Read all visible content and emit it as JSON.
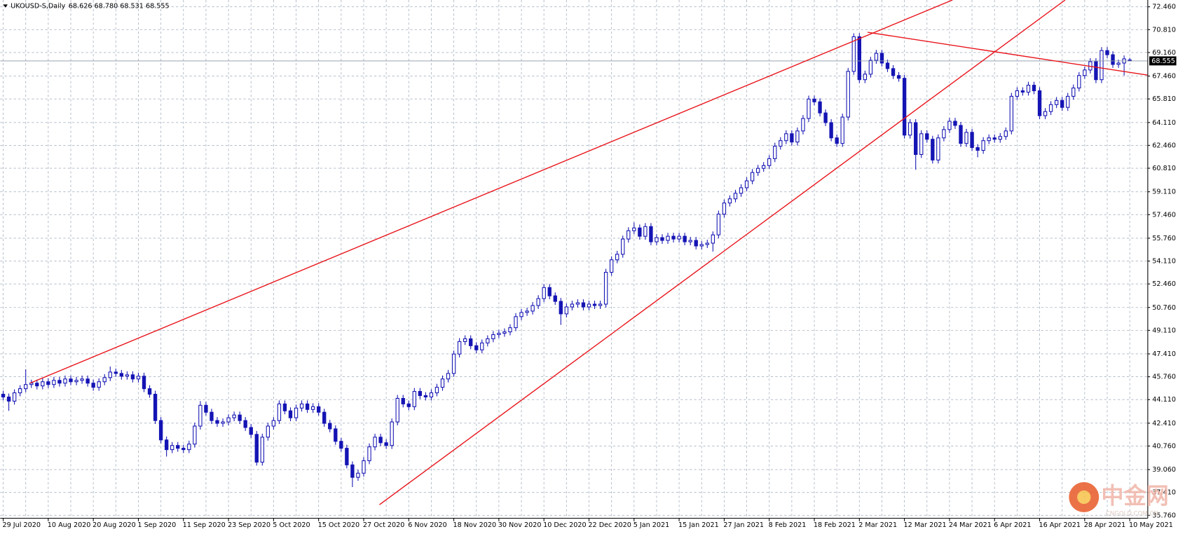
{
  "chart_data": {
    "type": "candlestick",
    "title": "UKOUSD-S,Daily",
    "header_prices": "68.626 68.780 68.531 68.555",
    "watermark": "中金网",
    "watermark_sub": "CNGOLD.COM.CN",
    "color": "#1414b4",
    "grid": true,
    "ylim": [
      35.55,
      72.95
    ],
    "yticks": [
      {
        "value": 35.76,
        "label": "35.760"
      },
      {
        "value": 37.41,
        "label": "37.410"
      },
      {
        "value": 39.06,
        "label": "39.060"
      },
      {
        "value": 40.76,
        "label": "40.760"
      },
      {
        "value": 42.41,
        "label": "42.410"
      },
      {
        "value": 44.11,
        "label": "44.110"
      },
      {
        "value": 45.76,
        "label": "45.760"
      },
      {
        "value": 47.41,
        "label": "47.410"
      },
      {
        "value": 49.11,
        "label": "49.110"
      },
      {
        "value": 50.76,
        "label": "50.760"
      },
      {
        "value": 52.46,
        "label": "52.460"
      },
      {
        "value": 54.11,
        "label": "54.110"
      },
      {
        "value": 55.76,
        "label": "55.760"
      },
      {
        "value": 57.46,
        "label": "57.460"
      },
      {
        "value": 59.11,
        "label": "59.110"
      },
      {
        "value": 60.81,
        "label": "60.810"
      },
      {
        "value": 62.46,
        "label": "62.460"
      },
      {
        "value": 64.11,
        "label": "64.110"
      },
      {
        "value": 65.81,
        "label": "65.810"
      },
      {
        "value": 67.46,
        "label": "67.460"
      },
      {
        "value": 69.16,
        "label": "69.160"
      },
      {
        "value": 70.81,
        "label": "70.810"
      },
      {
        "value": 72.46,
        "label": "72.460"
      }
    ],
    "categories": [
      "29 Jul 2020",
      null,
      null,
      null,
      null,
      null,
      null,
      null,
      "10 Aug 2020",
      null,
      null,
      null,
      null,
      null,
      null,
      null,
      "20 Aug 2020",
      null,
      null,
      null,
      null,
      null,
      null,
      null,
      "1 Sep 2020",
      null,
      null,
      null,
      null,
      null,
      null,
      null,
      "11 Sep 2020",
      null,
      null,
      null,
      null,
      null,
      null,
      null,
      "23 Sep 2020",
      null,
      null,
      null,
      null,
      null,
      null,
      null,
      "5 Oct 2020",
      null,
      null,
      null,
      null,
      null,
      null,
      null,
      "15 Oct 2020",
      null,
      null,
      null,
      null,
      null,
      null,
      null,
      "27 Oct 2020",
      null,
      null,
      null,
      null,
      null,
      null,
      null,
      "6 Nov 2020",
      null,
      null,
      null,
      null,
      null,
      null,
      null,
      "18 Nov 2020",
      null,
      null,
      null,
      null,
      null,
      null,
      null,
      "30 Nov 2020",
      null,
      null,
      null,
      null,
      null,
      null,
      null,
      "10 Dec 2020",
      null,
      null,
      null,
      null,
      null,
      null,
      null,
      "22 Dec 2020",
      null,
      null,
      null,
      null,
      null,
      null,
      null,
      "5 Jan 2021",
      null,
      null,
      null,
      null,
      null,
      null,
      null,
      "15 Jan 2021",
      null,
      null,
      null,
      null,
      null,
      null,
      null,
      "27 Jan 2021",
      null,
      null,
      null,
      null,
      null,
      null,
      null,
      "8 Feb 2021",
      null,
      null,
      null,
      null,
      null,
      null,
      null,
      "18 Feb 2021",
      null,
      null,
      null,
      null,
      null,
      null,
      null,
      "2 Mar 2021",
      null,
      null,
      null,
      null,
      null,
      null,
      null,
      "12 Mar 2021",
      null,
      null,
      null,
      null,
      null,
      null,
      null,
      "24 Mar 2021",
      null,
      null,
      null,
      null,
      null,
      null,
      null,
      "6 Apr 2021",
      null,
      null,
      null,
      null,
      null,
      null,
      null,
      "16 Apr 2021",
      null,
      null,
      null,
      null,
      null,
      null,
      null,
      "28 Apr 2021",
      null,
      null,
      null,
      null,
      null,
      null,
      null,
      "10 May 2021"
    ],
    "open": [
      44.5,
      44.3,
      44.0,
      44.6,
      44.9,
      45.2,
      45.3,
      45.1,
      45.4,
      45.2,
      45.5,
      45.3,
      45.6,
      45.4,
      45.5,
      45.6,
      45.3,
      45.0,
      45.4,
      45.7,
      46.1,
      46.0,
      45.8,
      45.9,
      45.6,
      45.8,
      44.9,
      44.5,
      42.6,
      41.2,
      40.5,
      40.8,
      40.6,
      40.5,
      40.9,
      42.2,
      43.7,
      43.2,
      42.6,
      42.4,
      42.5,
      42.8,
      43.0,
      42.6,
      42.1,
      41.6,
      39.6,
      41.4,
      42.2,
      42.6,
      43.8,
      43.3,
      42.8,
      43.5,
      43.8,
      43.4,
      43.6,
      43.2,
      42.4,
      42.0,
      41.1,
      40.6,
      39.4,
      38.5,
      38.8,
      39.7,
      40.7,
      41.4,
      41.0,
      40.8,
      42.5,
      44.2,
      43.8,
      43.6,
      44.7,
      44.4,
      44.3,
      44.6,
      45.0,
      45.6,
      46.0,
      47.4,
      48.3,
      48.5,
      48.0,
      47.7,
      48.2,
      48.5,
      48.8,
      48.9,
      49.0,
      49.3,
      50.1,
      50.4,
      50.5,
      50.9,
      51.4,
      52.2,
      51.6,
      51.2,
      50.3,
      50.8,
      51.0,
      51.1,
      50.8,
      51.0,
      50.9,
      51.0,
      53.3,
      54.2,
      54.6,
      55.7,
      56.3,
      56.5,
      55.9,
      56.6,
      55.5,
      55.8,
      55.6,
      55.9,
      55.7,
      55.9,
      55.5,
      55.6,
      55.2,
      55.3,
      55.4,
      56.0,
      57.5,
      58.3,
      58.6,
      59.0,
      59.4,
      59.9,
      60.5,
      60.8,
      61.0,
      61.5,
      62.4,
      62.8,
      63.3,
      62.7,
      63.5,
      64.4,
      65.8,
      65.6,
      64.8,
      64.1,
      63.0,
      62.6,
      64.5,
      67.8,
      70.3,
      67.2,
      67.6,
      68.6,
      69.1,
      68.4,
      68.0,
      67.5,
      67.3,
      63.2,
      64.1,
      61.8,
      63.3,
      62.9,
      61.4,
      63.0,
      63.6,
      64.2,
      63.9,
      62.6,
      63.4,
      62.3,
      62.1,
      62.8,
      63.0,
      62.9,
      63.1,
      63.5,
      66.0,
      66.4,
      66.3,
      66.8,
      66.4,
      64.6,
      64.9,
      65.4,
      65.7,
      65.2,
      66.0,
      66.6,
      67.5,
      67.9,
      68.5,
      67.2,
      69.3,
      69.0,
      68.3,
      68.4,
      68.626
    ],
    "high": [
      44.75,
      44.55,
      44.85,
      45.15,
      46.3,
      45.55,
      45.55,
      45.65,
      45.65,
      45.75,
      45.75,
      45.85,
      45.85,
      45.75,
      45.85,
      45.85,
      45.55,
      45.65,
      45.95,
      46.5,
      46.35,
      46.25,
      46.15,
      46.15,
      46.05,
      46.05,
      45.15,
      44.75,
      42.85,
      41.45,
      41.05,
      41.05,
      40.85,
      41.15,
      42.45,
      44.0,
      43.95,
      43.45,
      42.85,
      42.75,
      43.05,
      43.25,
      43.25,
      42.85,
      42.35,
      41.85,
      41.65,
      42.45,
      42.85,
      44.05,
      44.05,
      43.55,
      43.75,
      44.05,
      44.05,
      43.85,
      43.85,
      43.45,
      42.65,
      42.25,
      41.35,
      40.85,
      39.65,
      39.05,
      39.95,
      40.95,
      41.65,
      41.65,
      41.25,
      42.75,
      44.45,
      44.45,
      44.05,
      44.95,
      44.95,
      44.65,
      44.85,
      45.25,
      45.85,
      46.25,
      47.65,
      48.55,
      48.75,
      48.75,
      48.25,
      48.45,
      48.75,
      49.05,
      49.15,
      49.25,
      49.55,
      50.35,
      50.65,
      50.75,
      51.15,
      51.65,
      52.45,
      52.45,
      51.85,
      51.45,
      51.05,
      51.25,
      51.35,
      51.35,
      51.25,
      51.25,
      51.25,
      53.55,
      54.45,
      54.85,
      55.95,
      56.55,
      56.9,
      56.75,
      56.85,
      56.85,
      56.05,
      56.05,
      56.15,
      56.15,
      56.15,
      56.15,
      55.85,
      55.85,
      55.55,
      55.65,
      56.25,
      57.75,
      58.55,
      58.85,
      59.25,
      59.65,
      60.15,
      60.75,
      61.05,
      61.25,
      61.75,
      62.65,
      63.05,
      63.55,
      63.55,
      63.75,
      64.65,
      66.05,
      66.05,
      65.85,
      65.05,
      64.35,
      63.25,
      64.75,
      68.05,
      70.55,
      70.55,
      67.85,
      68.85,
      69.35,
      69.35,
      68.65,
      68.25,
      67.75,
      67.55,
      64.35,
      64.35,
      63.55,
      63.55,
      63.15,
      63.25,
      63.85,
      64.45,
      64.45,
      64.15,
      63.65,
      63.65,
      62.55,
      63.05,
      63.25,
      63.25,
      63.35,
      63.75,
      66.25,
      66.65,
      66.65,
      67.05,
      67.05,
      66.65,
      65.15,
      65.65,
      65.95,
      65.95,
      66.25,
      66.85,
      67.75,
      68.15,
      68.75,
      68.75,
      69.55,
      69.55,
      69.25,
      68.65,
      68.95,
      68.78
    ],
    "low": [
      44.05,
      43.3,
      43.75,
      44.35,
      44.65,
      44.95,
      44.85,
      44.85,
      44.95,
      44.95,
      45.05,
      45.05,
      45.15,
      45.15,
      45.25,
      45.05,
      44.75,
      44.75,
      45.15,
      45.45,
      45.75,
      45.55,
      45.55,
      45.35,
      45.35,
      44.65,
      44.25,
      42.35,
      40.95,
      40.0,
      40.25,
      40.35,
      40.25,
      40.25,
      40.65,
      41.95,
      42.95,
      42.35,
      42.15,
      42.15,
      42.25,
      42.55,
      42.35,
      41.85,
      41.35,
      39.35,
      39.35,
      41.15,
      41.95,
      42.35,
      43.05,
      42.55,
      42.55,
      43.25,
      43.15,
      43.15,
      42.95,
      42.15,
      41.75,
      40.85,
      40.35,
      39.15,
      37.8,
      38.25,
      38.55,
      39.45,
      40.45,
      40.75,
      40.55,
      40.55,
      42.25,
      43.55,
      43.35,
      43.35,
      44.15,
      44.05,
      44.05,
      44.35,
      44.75,
      45.35,
      45.75,
      47.15,
      48.05,
      47.75,
      47.45,
      47.45,
      47.95,
      48.25,
      48.55,
      48.65,
      48.75,
      49.05,
      49.85,
      50.15,
      50.25,
      50.65,
      51.15,
      51.35,
      50.95,
      49.5,
      50.05,
      50.55,
      50.75,
      50.55,
      50.55,
      50.65,
      50.65,
      50.75,
      53.05,
      53.95,
      54.35,
      55.45,
      56.05,
      55.65,
      55.65,
      55.25,
      55.25,
      55.35,
      55.35,
      55.45,
      55.45,
      55.25,
      55.25,
      54.95,
      54.95,
      55.05,
      54.8,
      55.75,
      57.25,
      58.05,
      58.35,
      58.75,
      59.15,
      59.65,
      60.25,
      60.55,
      60.75,
      61.25,
      62.15,
      62.55,
      62.45,
      62.45,
      63.25,
      64.15,
      65.35,
      64.55,
      63.85,
      62.75,
      62.35,
      62.35,
      64.25,
      67.55,
      66.95,
      66.95,
      67.35,
      68.35,
      68.15,
      67.75,
      67.25,
      67.05,
      62.95,
      62.95,
      60.7,
      61.55,
      62.65,
      61.15,
      61.15,
      62.75,
      63.35,
      63.65,
      62.35,
      62.35,
      62.05,
      61.6,
      61.85,
      62.55,
      62.65,
      62.65,
      62.85,
      63.25,
      65.75,
      66.05,
      66.05,
      66.15,
      64.35,
      64.35,
      64.65,
      65.15,
      64.95,
      64.95,
      65.75,
      66.35,
      67.25,
      67.65,
      66.95,
      66.95,
      68.75,
      68.05,
      68.05,
      67.5,
      68.531
    ],
    "close": [
      44.3,
      44.0,
      44.6,
      44.9,
      45.2,
      45.3,
      45.1,
      45.4,
      45.2,
      45.5,
      45.3,
      45.6,
      45.4,
      45.5,
      45.6,
      45.3,
      45.0,
      45.4,
      45.7,
      46.1,
      46.0,
      45.8,
      45.9,
      45.6,
      45.8,
      44.9,
      44.5,
      42.6,
      41.2,
      40.5,
      40.8,
      40.6,
      40.5,
      40.9,
      42.2,
      43.7,
      43.2,
      42.6,
      42.4,
      42.5,
      42.8,
      43.0,
      42.6,
      42.1,
      41.6,
      39.6,
      41.4,
      42.2,
      42.6,
      43.8,
      43.3,
      42.8,
      43.5,
      43.8,
      43.4,
      43.6,
      43.2,
      42.4,
      42.0,
      41.1,
      40.6,
      39.4,
      38.5,
      38.8,
      39.7,
      40.7,
      41.4,
      41.0,
      40.8,
      42.5,
      44.2,
      43.8,
      43.6,
      44.7,
      44.4,
      44.3,
      44.6,
      45.0,
      45.6,
      46.0,
      47.4,
      48.3,
      48.5,
      48.0,
      47.7,
      48.2,
      48.5,
      48.8,
      48.9,
      49.0,
      49.3,
      50.1,
      50.4,
      50.5,
      50.9,
      51.4,
      52.2,
      51.6,
      51.2,
      50.3,
      50.8,
      51.0,
      51.1,
      50.8,
      51.0,
      50.9,
      51.0,
      53.3,
      54.2,
      54.6,
      55.7,
      56.3,
      56.5,
      55.9,
      56.6,
      55.5,
      55.8,
      55.6,
      55.9,
      55.7,
      55.9,
      55.5,
      55.6,
      55.2,
      55.3,
      55.4,
      56.0,
      57.5,
      58.3,
      58.6,
      59.0,
      59.4,
      59.9,
      60.5,
      60.8,
      61.0,
      61.5,
      62.4,
      62.8,
      63.3,
      62.7,
      63.5,
      64.4,
      65.8,
      65.6,
      64.8,
      64.1,
      63.0,
      62.6,
      64.5,
      67.8,
      70.3,
      67.2,
      67.6,
      68.6,
      69.1,
      68.4,
      68.0,
      67.5,
      67.3,
      63.2,
      64.1,
      61.8,
      63.3,
      62.9,
      61.4,
      63.0,
      63.6,
      64.2,
      63.9,
      62.6,
      63.4,
      62.3,
      62.1,
      62.8,
      63.0,
      62.9,
      63.1,
      63.5,
      66.0,
      66.4,
      66.3,
      66.8,
      66.4,
      64.6,
      64.9,
      65.4,
      65.7,
      65.2,
      66.0,
      66.6,
      67.5,
      67.9,
      68.5,
      67.2,
      69.3,
      69.0,
      68.3,
      68.4,
      68.7,
      68.555
    ]
  }
}
